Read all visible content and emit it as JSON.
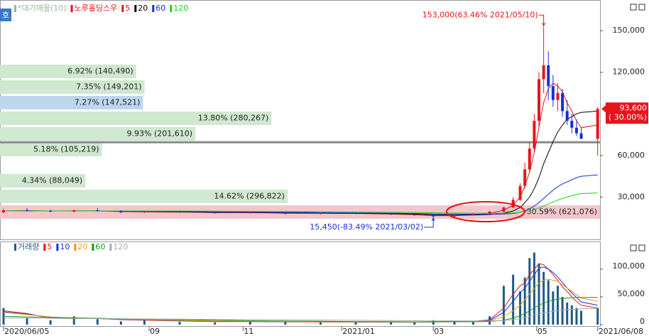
{
  "side_tab": "호",
  "chart_data": [
    {
      "type": "candlestick",
      "name": "노루홀딩스우",
      "up_color": "#e8141b",
      "down_color": "#1530d8",
      "x": [
        0,
        10,
        20,
        30,
        40,
        50,
        60,
        75,
        90,
        105,
        120,
        135,
        150,
        165,
        175,
        183,
        192,
        200,
        207,
        213,
        217,
        220,
        222,
        224,
        226,
        228,
        230,
        232,
        234,
        236,
        238,
        240,
        242,
        244,
        246,
        253
      ],
      "open": [
        19000,
        20500,
        20000,
        19500,
        20500,
        20000,
        19000,
        19500,
        19000,
        18500,
        19000,
        18000,
        18500,
        18000,
        17500,
        17000,
        16000,
        17000,
        18000,
        19500,
        22500,
        28000,
        38000,
        50000,
        65000,
        85000,
        115000,
        125000,
        110000,
        100000,
        105000,
        92000,
        85000,
        80000,
        76000,
        72000
      ],
      "high": [
        21500,
        22000,
        21000,
        21000,
        22000,
        20500,
        20000,
        20000,
        19500,
        19500,
        19500,
        19000,
        19000,
        18500,
        18000,
        17500,
        17500,
        18500,
        20000,
        23000,
        30000,
        40000,
        55000,
        70000,
        90000,
        120000,
        153000,
        135000,
        118000,
        112000,
        108000,
        100000,
        90000,
        86000,
        80000,
        95000
      ],
      "low": [
        18500,
        19500,
        19000,
        19000,
        19500,
        18500,
        18500,
        18500,
        18000,
        18000,
        17500,
        17500,
        17500,
        17000,
        16500,
        15450,
        15500,
        16500,
        17500,
        19000,
        22000,
        27000,
        36000,
        48000,
        62000,
        80000,
        105000,
        100000,
        95000,
        92000,
        88000,
        82000,
        76000,
        74000,
        72000,
        60000
      ],
      "close": [
        20500,
        20000,
        19500,
        20500,
        20000,
        19000,
        19500,
        19000,
        18500,
        19000,
        18000,
        18500,
        18000,
        17500,
        17000,
        16000,
        17000,
        18000,
        19500,
        22500,
        28000,
        38000,
        50000,
        65000,
        85000,
        115000,
        125000,
        110000,
        100000,
        105000,
        92000,
        85000,
        80000,
        76000,
        72000,
        93600
      ],
      "series": [
        {
          "name": "5",
          "color": "#e8141b",
          "values": [
            20000,
            20200,
            19900,
            20100,
            20000,
            19500,
            19400,
            19200,
            18800,
            18900,
            18400,
            18300,
            18200,
            17800,
            17300,
            16600,
            16600,
            17200,
            18300,
            20500,
            24000,
            30000,
            38000,
            48000,
            62000,
            80000,
            98000,
            108000,
            112000,
            110000,
            106000,
            98000,
            92000,
            85000,
            80000,
            82000
          ]
        },
        {
          "name": "20",
          "color": "#000000",
          "values": [
            20000,
            20100,
            20000,
            20000,
            20100,
            19700,
            19500,
            19300,
            19000,
            18900,
            18600,
            18500,
            18300,
            18000,
            17700,
            17200,
            17000,
            17100,
            17400,
            18500,
            20000,
            22500,
            26000,
            30000,
            36000,
            44000,
            54000,
            62000,
            70000,
            77000,
            82000,
            86000,
            88000,
            90000,
            91000,
            92000
          ]
        },
        {
          "name": "60",
          "color": "#1530d8",
          "values": [
            20000,
            20000,
            20000,
            20000,
            20000,
            20000,
            19800,
            19600,
            19400,
            19200,
            19000,
            18800,
            18600,
            18400,
            18200,
            17900,
            17700,
            17600,
            17600,
            17800,
            18200,
            19000,
            20000,
            21500,
            23500,
            26000,
            29000,
            32000,
            35000,
            37500,
            39500,
            41000,
            42500,
            44000,
            45000,
            46000
          ]
        },
        {
          "name": "120",
          "color": "#19d219",
          "values": [
            20000,
            20000,
            20000,
            20000,
            20000,
            20000,
            20000,
            20000,
            19800,
            19700,
            19600,
            19400,
            19200,
            19000,
            18900,
            18700,
            18500,
            18400,
            18300,
            18400,
            18600,
            19000,
            19500,
            20200,
            21000,
            22200,
            23500,
            25000,
            26500,
            27800,
            29000,
            30000,
            31000,
            31800,
            32500,
            33000
          ]
        }
      ],
      "profile": {
        "name": "*대기매물(10)",
        "values": [
          6.92,
          7.35,
          7.27,
          13.8,
          9.93,
          5.18,
          null,
          4.34,
          14.62,
          30.59
        ],
        "value_labels": [
          "6.92% (140,490)",
          "7.35% (149,201)",
          "7.27% (147,521)",
          "13.80% (280,267)",
          "9.93% (201,610)",
          "5.18% (105,219)",
          null,
          "4.34% (88,049)",
          "14.62% (296,822)",
          "30.59% (621,076)"
        ],
        "colors": [
          "#cfe8cf",
          "#cfe8cf",
          "#bcd6ee",
          "#cfe8cf",
          "#cfe8cf",
          "#cfe8cf",
          null,
          "#cfe8cf",
          "#cfe8cf",
          "#f3c6cb"
        ]
      },
      "reference_line": 69500,
      "high_note": {
        "value": 153000,
        "label": "153,000(63.46% 2021/05/10)"
      },
      "low_note": {
        "value": 15450,
        "label": "15,450(-83.49% 2021/03/02)"
      },
      "last_price": {
        "value": 93600,
        "label": "93,600"
      },
      "last_change": {
        "value": 30.0,
        "label": "( 30.00%)"
      },
      "xlim": [
        0,
        254
      ],
      "ylim": [
        0,
        168000
      ],
      "yticks": [
        {
          "value": 30000,
          "label": "30,000"
        },
        {
          "value": 60000,
          "label": "60,000"
        },
        {
          "value": 120000,
          "label": "120,000"
        },
        {
          "value": 150000,
          "label": "150,000"
        }
      ]
    },
    {
      "type": "bar",
      "x": [
        0,
        10,
        20,
        30,
        40,
        50,
        60,
        75,
        90,
        105,
        120,
        135,
        150,
        165,
        175,
        183,
        192,
        200,
        207,
        213,
        217,
        220,
        222,
        224,
        226,
        228,
        230,
        232,
        234,
        236,
        238,
        240,
        242,
        244,
        246,
        253
      ],
      "series": [
        {
          "name": "거래량",
          "color": "#1f5a86",
          "values": [
            30000,
            12000,
            8000,
            15000,
            10000,
            6000,
            8000,
            5000,
            4000,
            6000,
            5000,
            4000,
            5000,
            4000,
            4000,
            8000,
            6000,
            5000,
            15000,
            70000,
            90000,
            60000,
            85000,
            120000,
            130000,
            110000,
            95000,
            80000,
            60000,
            70000,
            50000,
            40000,
            35000,
            30000,
            25000,
            30000
          ]
        },
        {
          "name": "5",
          "color": "#e8141b",
          "values": [
            25000,
            20000,
            12000,
            11000,
            11000,
            9000,
            8000,
            6500,
            5500,
            5500,
            5000,
            4800,
            4700,
            4500,
            4300,
            5500,
            6000,
            6000,
            8500,
            30000,
            55000,
            70000,
            75000,
            90000,
            100000,
            110000,
            108000,
            100000,
            90000,
            80000,
            68000,
            60000,
            50000,
            42000,
            35000,
            30000
          ]
        },
        {
          "name": "10",
          "color": "#1530d8",
          "values": [
            23000,
            19000,
            13000,
            11500,
            11000,
            9500,
            8500,
            7000,
            6000,
            5700,
            5200,
            4900,
            4800,
            4600,
            4400,
            5000,
            5600,
            5800,
            7500,
            22000,
            42000,
            58000,
            66000,
            78000,
            90000,
            102000,
            104000,
            100000,
            94000,
            86000,
            76000,
            66000,
            57000,
            49000,
            41000,
            35000
          ]
        },
        {
          "name": "20",
          "color": "#f09a10",
          "values": [
            22000,
            18000,
            14000,
            12000,
            11000,
            10000,
            9000,
            7500,
            6500,
            6000,
            5500,
            5000,
            5000,
            4700,
            4500,
            4800,
            5200,
            5500,
            6500,
            15000,
            25000,
            35000,
            45000,
            55000,
            65000,
            75000,
            80000,
            82000,
            80000,
            78000,
            72000,
            66000,
            60000,
            54000,
            48000,
            42000
          ]
        },
        {
          "name": "60",
          "color": "#139a13",
          "values": [
            15000,
            14000,
            13000,
            12000,
            11500,
            10500,
            10000,
            9000,
            8000,
            7000,
            6500,
            6000,
            5500,
            5200,
            5000,
            5000,
            5100,
            5200,
            5500,
            8000,
            12000,
            16000,
            20000,
            25000,
            30000,
            35000,
            39000,
            42000,
            44000,
            46000,
            47000,
            48000,
            48500,
            49000,
            49000,
            49000
          ]
        },
        {
          "name": "120",
          "color": "#a8a8a8",
          "values": [
            12000,
            12000,
            11500,
            11000,
            10800,
            10500,
            10200,
            9800,
            9400,
            9000,
            8600,
            8200,
            7800,
            7400,
            7000,
            6800,
            6600,
            6500,
            6500,
            7500,
            9000,
            11000,
            13000,
            15000,
            17000,
            19000,
            21000,
            22500,
            24000,
            25000,
            26000,
            27000,
            27500,
            28000,
            28500,
            29000
          ]
        }
      ],
      "xlim": [
        0,
        254
      ],
      "ylim": [
        0,
        146000
      ],
      "yticks": [
        0,
        {
          "value": 50000,
          "label": "50,000"
        },
        {
          "value": 100000,
          "label": "100,000"
        }
      ],
      "xticks": [
        {
          "value": 0,
          "label": "2020/06/05"
        },
        {
          "value": 62,
          "label": "09"
        },
        {
          "value": 102,
          "label": "11"
        },
        {
          "value": 144,
          "label": "2021/01"
        },
        {
          "value": 183,
          "label": "03"
        },
        {
          "value": 227,
          "label": "05"
        },
        {
          "value": 253,
          "label": "2021/06/08"
        }
      ]
    }
  ]
}
